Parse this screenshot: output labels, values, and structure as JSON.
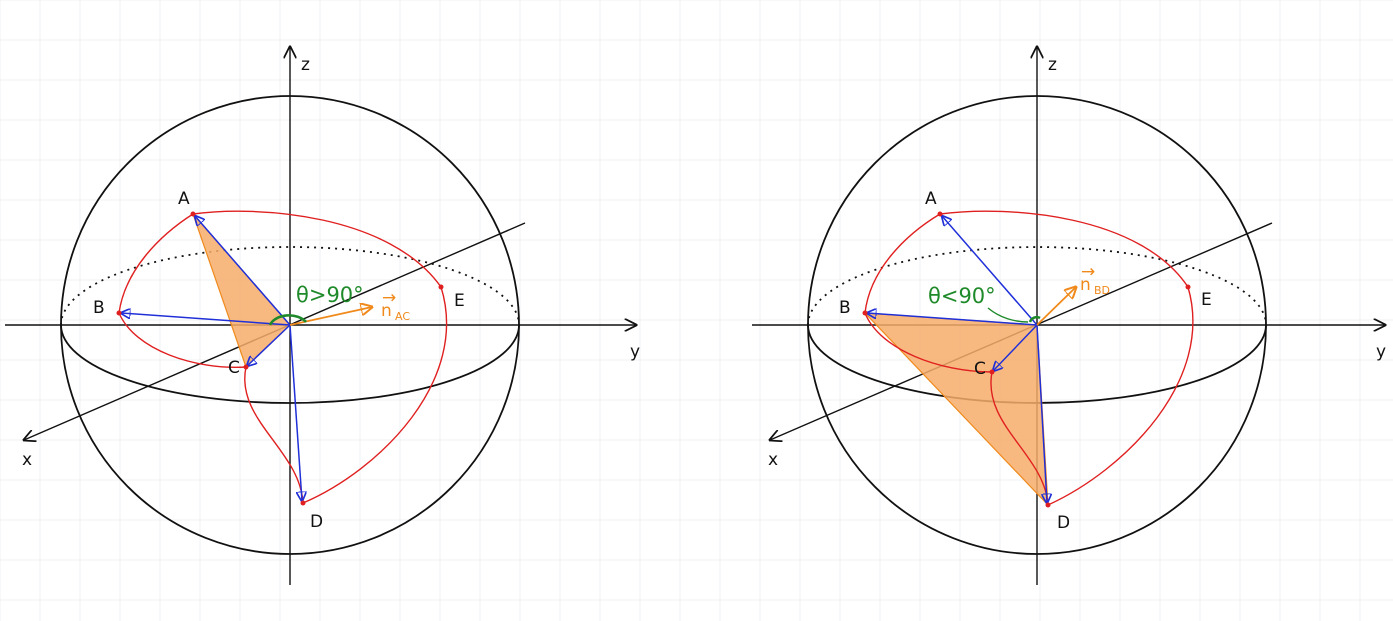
{
  "colors": {
    "grid": "#eef0f3",
    "axis": "#111111",
    "sphere": "#111111",
    "curve": "#e02020",
    "vector": "#2030d8",
    "triangle_fill": "#f6ad6a",
    "triangle_stroke": "#f08a1c",
    "normal": "#f08a1c",
    "angle": "#1f8a2a",
    "point": "#e02020"
  },
  "left": {
    "axis_z": "z",
    "axis_y": "y",
    "axis_x": "x",
    "point_a": "A",
    "point_b": "B",
    "point_c": "C",
    "point_d": "D",
    "point_e": "E",
    "angle_label": "θ>90°",
    "normal_label": "n",
    "normal_sub": "AC"
  },
  "right": {
    "axis_z": "z",
    "axis_y": "y",
    "axis_x": "x",
    "point_a": "A",
    "point_b": "B",
    "point_c": "C",
    "point_d": "D",
    "point_e": "E",
    "angle_label": "θ<90°",
    "normal_label": "n",
    "normal_sub": "BD"
  }
}
